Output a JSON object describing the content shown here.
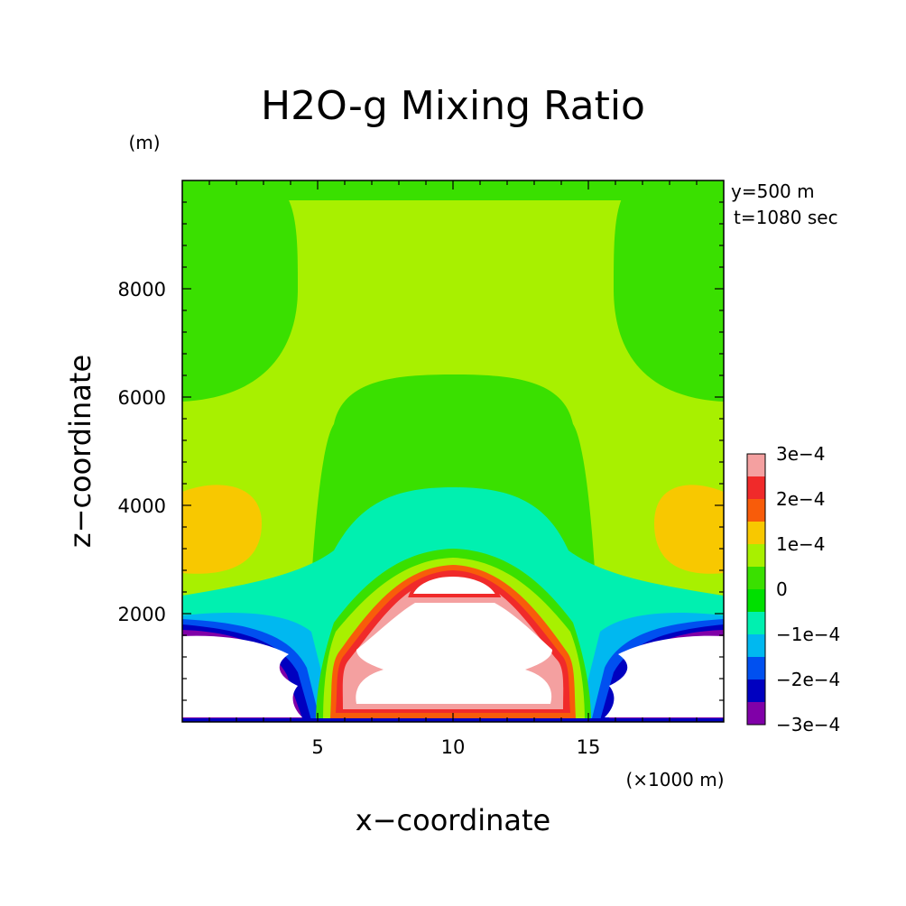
{
  "chart_data": {
    "type": "heatmap",
    "title": "H2O-g Mixing Ratio",
    "xlabel": "x−coordinate",
    "ylabel": "z−coordinate",
    "x_unit": "(×1000 m)",
    "y_unit": "(m)",
    "annotations": [
      "y=500 m",
      "t=1080 sec"
    ],
    "xlim": [
      0,
      20
    ],
    "ylim": [
      0,
      10000
    ],
    "xticks": [
      5,
      10,
      15
    ],
    "yticks": [
      2000,
      4000,
      6000,
      8000
    ],
    "colorbar": {
      "levels": [
        -0.0003,
        -0.00025,
        -0.0002,
        -0.00015,
        -0.0001,
        -5e-05,
        0,
        5e-05,
        0.0001,
        0.00015,
        0.0002,
        0.00025,
        0.0003
      ],
      "labels": [
        "3e−4",
        "2e−4",
        "1e−4",
        "0",
        "−1e−4",
        "−2e−4",
        "−3e−4"
      ],
      "colors": [
        "#f4a0a0",
        "#f02a2a",
        "#f85c0a",
        "#f8c800",
        "#a8f000",
        "#3ae000",
        "#00e000",
        "#00f0b0",
        "#00b8f0",
        "#0050f0",
        "#0000c0",
        "#8000a8"
      ]
    },
    "field_description_levels": {
      "background": 5e-05,
      "upper_side_regions": 0,
      "mid_side_bulges": 0.000125,
      "upper_cell": 0.00025,
      "lower_center_cell": 0.0003,
      "lower_side_cells": -0.0003
    }
  }
}
